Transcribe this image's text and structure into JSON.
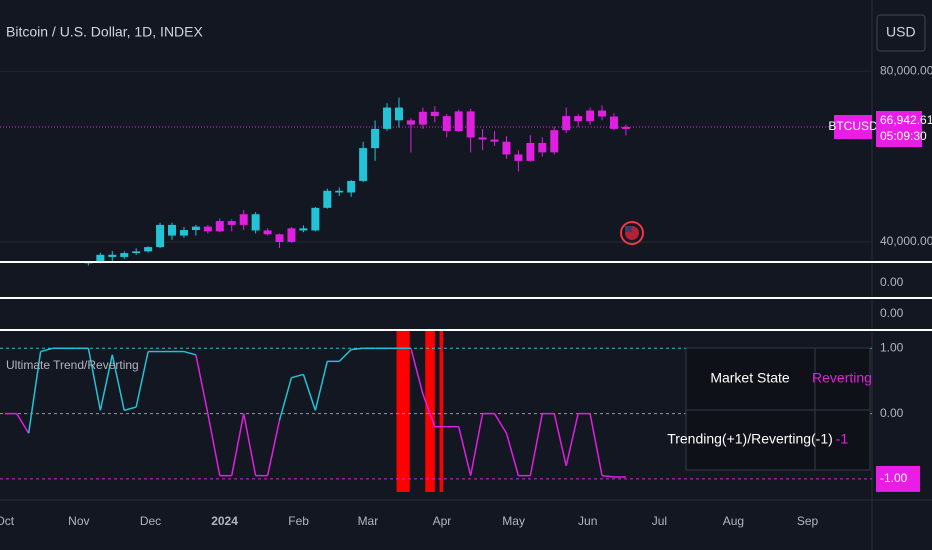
{
  "header": {
    "symbol_title": "Bitcoin / U.S. Dollar, 1D, INDEX",
    "currency_button": "USD"
  },
  "chart_data": [
    {
      "type": "candlestick",
      "xlim": [
        -2,
        363
      ],
      "x": [
        35,
        40,
        45,
        50,
        55,
        60,
        65,
        70,
        75,
        80,
        85,
        90,
        95,
        100,
        105,
        110,
        115,
        120,
        125,
        130,
        135,
        140,
        145,
        150,
        155,
        160,
        165,
        170,
        175,
        180,
        185,
        190,
        195,
        200,
        205,
        210,
        215,
        220,
        225,
        230,
        235,
        240,
        245,
        250,
        255,
        260
      ],
      "open": [
        35000,
        35300,
        37000,
        36500,
        37400,
        37800,
        38800,
        44000,
        41500,
        42800,
        43600,
        42500,
        44900,
        44000,
        46500,
        42700,
        41800,
        40000,
        43200,
        42700,
        48000,
        52000,
        51600,
        54300,
        62000,
        66500,
        71500,
        68500,
        67500,
        70500,
        69500,
        66000,
        70600,
        64500,
        64000,
        63500,
        60500,
        59000,
        63200,
        61000,
        66200,
        69500,
        68300,
        70800,
        69400,
        66500
      ],
      "high": [
        35500,
        37500,
        37900,
        37800,
        38500,
        39000,
        44500,
        44500,
        43500,
        44000,
        44000,
        45500,
        45300,
        47500,
        47000,
        43200,
        42000,
        43500,
        43900,
        48200,
        52500,
        52800,
        54500,
        63500,
        68500,
        72500,
        73800,
        69000,
        71500,
        71800,
        70000,
        71000,
        71200,
        66500,
        66000,
        64800,
        61500,
        65000,
        64500,
        67000,
        71500,
        70000,
        71500,
        72000,
        70200,
        67500
      ],
      "low": [
        34500,
        35000,
        35500,
        36000,
        37000,
        37500,
        38600,
        40500,
        41000,
        41500,
        42000,
        42300,
        42500,
        42800,
        42000,
        41500,
        38600,
        39800,
        42300,
        42500,
        47800,
        50800,
        50600,
        54000,
        59000,
        66000,
        66800,
        61000,
        66500,
        68000,
        64500,
        65800,
        61000,
        61500,
        62500,
        59500,
        56500,
        58800,
        60000,
        60500,
        65500,
        67000,
        67500,
        68500,
        66200,
        65000
      ],
      "close": [
        35300,
        37000,
        36500,
        37400,
        37800,
        38800,
        44000,
        41500,
        42800,
        43600,
        42500,
        44900,
        44000,
        46500,
        42700,
        41800,
        40000,
        43200,
        42700,
        48000,
        52000,
        51600,
        54300,
        62000,
        66500,
        71500,
        68500,
        67500,
        70500,
        69500,
        66000,
        70600,
        64500,
        64000,
        63500,
        60500,
        59000,
        63200,
        61000,
        66200,
        69500,
        68300,
        70800,
        69400,
        66500,
        66942.61
      ],
      "colors": [
        "#22c3d6",
        "#22c3d6",
        "#22c3d6",
        "#22c3d6",
        "#22c3d6",
        "#22c3d6",
        "#22c3d6",
        "#22c3d6",
        "#22c3d6",
        "#22c3d6",
        "#e01fe0",
        "#e01fe0",
        "#e01fe0",
        "#e01fe0",
        "#22c3d6",
        "#e01fe0",
        "#e01fe0",
        "#e01fe0",
        "#22c3d6",
        "#22c3d6",
        "#22c3d6",
        "#22c3d6",
        "#22c3d6",
        "#22c3d6",
        "#22c3d6",
        "#22c3d6",
        "#22c3d6",
        "#e01fe0",
        "#e01fe0",
        "#e01fe0",
        "#e01fe0",
        "#e01fe0",
        "#e01fe0",
        "#e01fe0",
        "#e01fe0",
        "#e01fe0",
        "#e01fe0",
        "#e01fe0",
        "#e01fe0",
        "#e01fe0",
        "#e01fe0",
        "#e01fe0",
        "#e01fe0",
        "#e01fe0",
        "#e01fe0",
        "#e01fe0"
      ],
      "ylim": [
        35310,
        96700
      ],
      "yticks": [
        {
          "value": 80000,
          "label": "80,000.00"
        },
        {
          "value": 40000,
          "label": "40,000.00"
        }
      ],
      "grid": true,
      "last_price": 66942.61,
      "last_price_label": "66,942.61",
      "last_price_color": "#e91ee6",
      "symbol": "BTCUSD",
      "countdown": "05:09:30"
    },
    {
      "type": "line",
      "title": "Ultimate Trend/Reverting",
      "xlim": [
        -2,
        363
      ],
      "xticks": [
        {
          "value": 0,
          "label": "Oct"
        },
        {
          "value": 31,
          "label": "Nov"
        },
        {
          "value": 61,
          "label": "Dec"
        },
        {
          "value": 92,
          "label": "2024"
        },
        {
          "value": 123,
          "label": "Feb"
        },
        {
          "value": 152,
          "label": "Mar"
        },
        {
          "value": 183,
          "label": "Apr"
        },
        {
          "value": 213,
          "label": "May"
        },
        {
          "value": 244,
          "label": "Jun"
        },
        {
          "value": 274,
          "label": "Jul"
        },
        {
          "value": 305,
          "label": "Aug"
        },
        {
          "value": 336,
          "label": "Sep"
        }
      ],
      "x": [
        0,
        5,
        10,
        15,
        20,
        25,
        30,
        35,
        40,
        45,
        50,
        55,
        60,
        65,
        70,
        75,
        80,
        85,
        90,
        95,
        100,
        105,
        110,
        115,
        120,
        125,
        130,
        135,
        140,
        145,
        150,
        155,
        160,
        165,
        170,
        175,
        180,
        185,
        190,
        195,
        200,
        205,
        210,
        215,
        220,
        225,
        230,
        235,
        240,
        245,
        250,
        255,
        260
      ],
      "values": [
        0,
        0,
        -0.3,
        0.95,
        1,
        1,
        1,
        1,
        0.05,
        0.9,
        0.05,
        0.1,
        0.95,
        0.95,
        0.95,
        0.95,
        0.9,
        0,
        -0.95,
        -0.95,
        0,
        -0.95,
        -0.95,
        -0.1,
        0.55,
        0.6,
        0.05,
        0.8,
        0.8,
        0.98,
        1,
        1,
        1,
        1,
        1,
        0.3,
        -0.2,
        -0.2,
        -0.2,
        -0.95,
        0,
        0,
        -0.3,
        -0.95,
        -0.95,
        0,
        0,
        -0.8,
        0,
        0,
        -0.95,
        -0.97,
        -0.97
      ],
      "colors": [
        "#e01fe0",
        "#e01fe0",
        "#e01fe0",
        "#22c3d6",
        "#22c3d6",
        "#22c3d6",
        "#22c3d6",
        "#22c3d6",
        "#22c3d6",
        "#22c3d6",
        "#22c3d6",
        "#22c3d6",
        "#22c3d6",
        "#22c3d6",
        "#22c3d6",
        "#22c3d6",
        "#22c3d6",
        "#e01fe0",
        "#e01fe0",
        "#e01fe0",
        "#e01fe0",
        "#e01fe0",
        "#e01fe0",
        "#e01fe0",
        "#22c3d6",
        "#22c3d6",
        "#22c3d6",
        "#22c3d6",
        "#22c3d6",
        "#22c3d6",
        "#22c3d6",
        "#22c3d6",
        "#22c3d6",
        "#22c3d6",
        "#22c3d6",
        "#e01fe0",
        "#e01fe0",
        "#e01fe0",
        "#e01fe0",
        "#e01fe0",
        "#e01fe0",
        "#e01fe0",
        "#e01fe0",
        "#e01fe0",
        "#e01fe0",
        "#e01fe0",
        "#e01fe0",
        "#e01fe0",
        "#e01fe0",
        "#e01fe0",
        "#e01fe0",
        "#e01fe0",
        "#e01fe0"
      ],
      "ylim": [
        -1.2,
        1.28
      ],
      "yticks": [
        {
          "value": 1,
          "label": "1.00"
        },
        {
          "value": 0,
          "label": "0.00"
        },
        {
          "value": -1,
          "label": "-1.00"
        }
      ],
      "ytick_line_colors": [
        "#22c3d6",
        "#9598a1",
        "#e01fe0"
      ],
      "ytick_label_backgrounds": [
        null,
        null,
        "#e91ee6"
      ],
      "highlight_ranges": [
        [
          164,
          169.5
        ],
        [
          176,
          180
        ],
        [
          182,
          183.5
        ]
      ],
      "highlight_color": "#ff0000"
    }
  ],
  "empty_panes": [
    {
      "ytick_label": "0.00"
    },
    {
      "ytick_label": "0.00"
    }
  ],
  "table": {
    "rows": [
      [
        "Market State",
        "Reverting"
      ],
      [
        "Trending(+1)/Reverting(-1)",
        "-1"
      ]
    ]
  }
}
